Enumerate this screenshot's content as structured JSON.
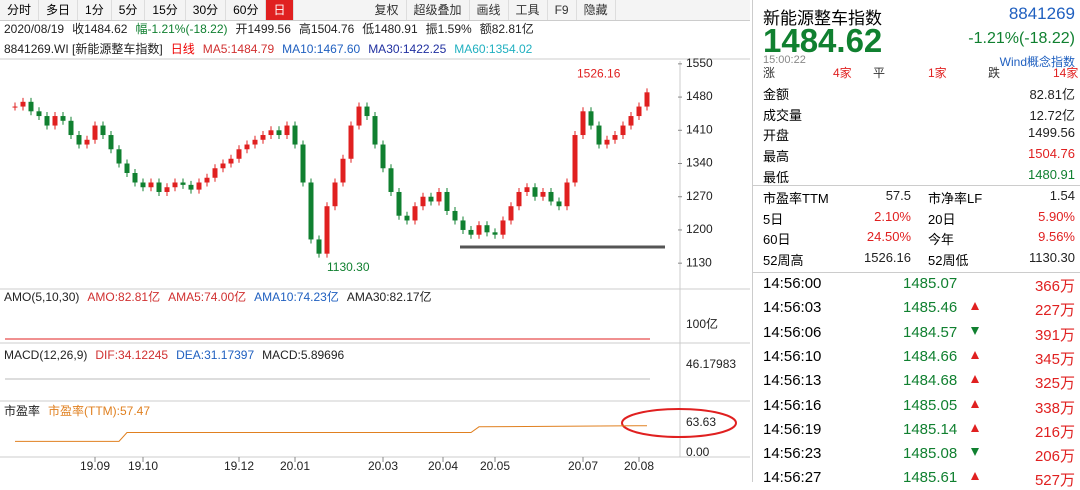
{
  "toolbar": {
    "tabs": [
      "分时",
      "多日",
      "1分",
      "5分",
      "15分",
      "30分",
      "60分",
      "日"
    ],
    "active": 7,
    "tools": [
      "复权",
      "超级叠加",
      "画线",
      "工具",
      "F9",
      "隐藏"
    ]
  },
  "info_bar": [
    "2020/08/19",
    "收1484.62",
    "幅-1.21%(-18.22)",
    "开1499.56",
    "高1504.76",
    "低1480.91",
    "振1.59%",
    "额82.81亿"
  ],
  "legend": [
    {
      "text": "8841269.WI [新能源整车指数]",
      "color": "#222"
    },
    {
      "text": "日线",
      "color": "#e00"
    },
    {
      "text": "MA5:1484.79",
      "color": "#d03030"
    },
    {
      "text": "MA10:1467.60",
      "color": "#2060c0"
    },
    {
      "text": "MA30:1422.25",
      "color": "#2030a0"
    },
    {
      "text": "MA60:1354.02",
      "color": "#20b0c0"
    }
  ],
  "chart_data": {
    "type": "candlestick",
    "up_color": "#e02020",
    "down_color": "#108030",
    "close": [
      1460,
      1470,
      1450,
      1440,
      1420,
      1440,
      1430,
      1400,
      1380,
      1390,
      1420,
      1400,
      1370,
      1340,
      1320,
      1300,
      1290,
      1300,
      1280,
      1290,
      1300,
      1295,
      1285,
      1300,
      1310,
      1330,
      1340,
      1350,
      1370,
      1380,
      1390,
      1400,
      1410,
      1400,
      1420,
      1380,
      1300,
      1180,
      1150,
      1250,
      1300,
      1350,
      1420,
      1460,
      1440,
      1380,
      1330,
      1280,
      1230,
      1220,
      1250,
      1270,
      1260,
      1280,
      1240,
      1220,
      1200,
      1190,
      1210,
      1195,
      1190,
      1220,
      1250,
      1280,
      1290,
      1270,
      1280,
      1260,
      1250,
      1300,
      1400,
      1450,
      1420,
      1380,
      1390,
      1400,
      1420,
      1440,
      1460,
      1490
    ],
    "ylim": [
      1084,
      1556
    ],
    "yticks": [
      1550,
      1480,
      1410,
      1340,
      1270,
      1200,
      1130
    ],
    "high_label": "1526.16",
    "low_label": "1130.30",
    "xticks": [
      {
        "value": 10,
        "label": "19.09"
      },
      {
        "value": 16,
        "label": "19.10"
      },
      {
        "value": 28,
        "label": "19.12"
      },
      {
        "value": 35,
        "label": "20.01"
      },
      {
        "value": 46,
        "label": "20.03"
      },
      {
        "value": 53.5,
        "label": "20.04"
      },
      {
        "value": 60,
        "label": "20.05"
      },
      {
        "value": 71,
        "label": "20.07"
      },
      {
        "value": 78,
        "label": "20.08"
      }
    ]
  },
  "amo": {
    "labels": [
      {
        "text": "AMO(5,10,30)",
        "color": "#222"
      },
      {
        "text": "AMO:82.81亿",
        "color": "#d03030"
      },
      {
        "text": "AMA5:74.00亿",
        "color": "#d03030"
      },
      {
        "text": "AMA10:74.23亿",
        "color": "#2060c0"
      },
      {
        "text": "AMA30:82.17亿",
        "color": "#222"
      }
    ],
    "axis": "100亿"
  },
  "macd": {
    "labels": [
      {
        "text": "MACD(12,26,9)",
        "color": "#222"
      },
      {
        "text": "DIF:34.12245",
        "color": "#d03030"
      },
      {
        "text": "DEA:31.17397",
        "color": "#2060c0"
      },
      {
        "text": "MACD:5.89696",
        "color": "#222"
      }
    ],
    "axis": "46.17983"
  },
  "pe": {
    "labels": [
      {
        "text": "市盈率",
        "color": "#222"
      },
      {
        "text": "市盈率(TTM):57.47",
        "color": "#e08020"
      }
    ],
    "x": [
      0,
      13,
      14,
      57,
      58,
      79
    ],
    "values": [
      22,
      22,
      42,
      42,
      55,
      57.47
    ],
    "ylim": [
      0,
      63.63
    ],
    "axis_top": "63.63",
    "axis_bottom": "0.00"
  },
  "quote": {
    "name": "新能源整车指数",
    "code": "8841269",
    "price": "1484.62",
    "change": "-1.21%(-18.22)",
    "time": "15:00:22",
    "tag": "Wind概念指数",
    "breadth": [
      "涨",
      "4家",
      "平",
      "1家",
      "跌",
      "14家"
    ],
    "rows": [
      [
        "金额",
        "82.81亿"
      ],
      [
        "成交量",
        "12.72亿"
      ],
      [
        "开盘",
        "1499.56"
      ],
      [
        "最高",
        "1504.76"
      ],
      [
        "最低",
        "1480.91"
      ]
    ],
    "grid": [
      [
        "市盈率TTM",
        "57.5",
        "市净率LF",
        "1.54"
      ],
      [
        "5日",
        "2.10%",
        "20日",
        "5.90%"
      ],
      [
        "60日",
        "24.50%",
        "今年",
        "9.56%"
      ],
      [
        "52周高",
        "1526.16",
        "52周低",
        "1130.30"
      ]
    ]
  },
  "trades": [
    {
      "time": "14:56:00",
      "price": "1485.07",
      "dir": null,
      "vol": "366万"
    },
    {
      "time": "14:56:03",
      "price": "1485.46",
      "dir": "up",
      "vol": "227万"
    },
    {
      "time": "14:56:06",
      "price": "1484.57",
      "dir": "down",
      "vol": "391万"
    },
    {
      "time": "14:56:10",
      "price": "1484.66",
      "dir": "up",
      "vol": "345万"
    },
    {
      "time": "14:56:13",
      "price": "1484.68",
      "dir": "up",
      "vol": "325万"
    },
    {
      "time": "14:56:16",
      "price": "1485.05",
      "dir": "up",
      "vol": "338万"
    },
    {
      "time": "14:56:19",
      "price": "1485.14",
      "dir": "up",
      "vol": "216万"
    },
    {
      "time": "14:56:23",
      "price": "1485.08",
      "dir": "down",
      "vol": "206万"
    },
    {
      "time": "14:56:27",
      "price": "1485.61",
      "dir": "up",
      "vol": "527万"
    }
  ]
}
